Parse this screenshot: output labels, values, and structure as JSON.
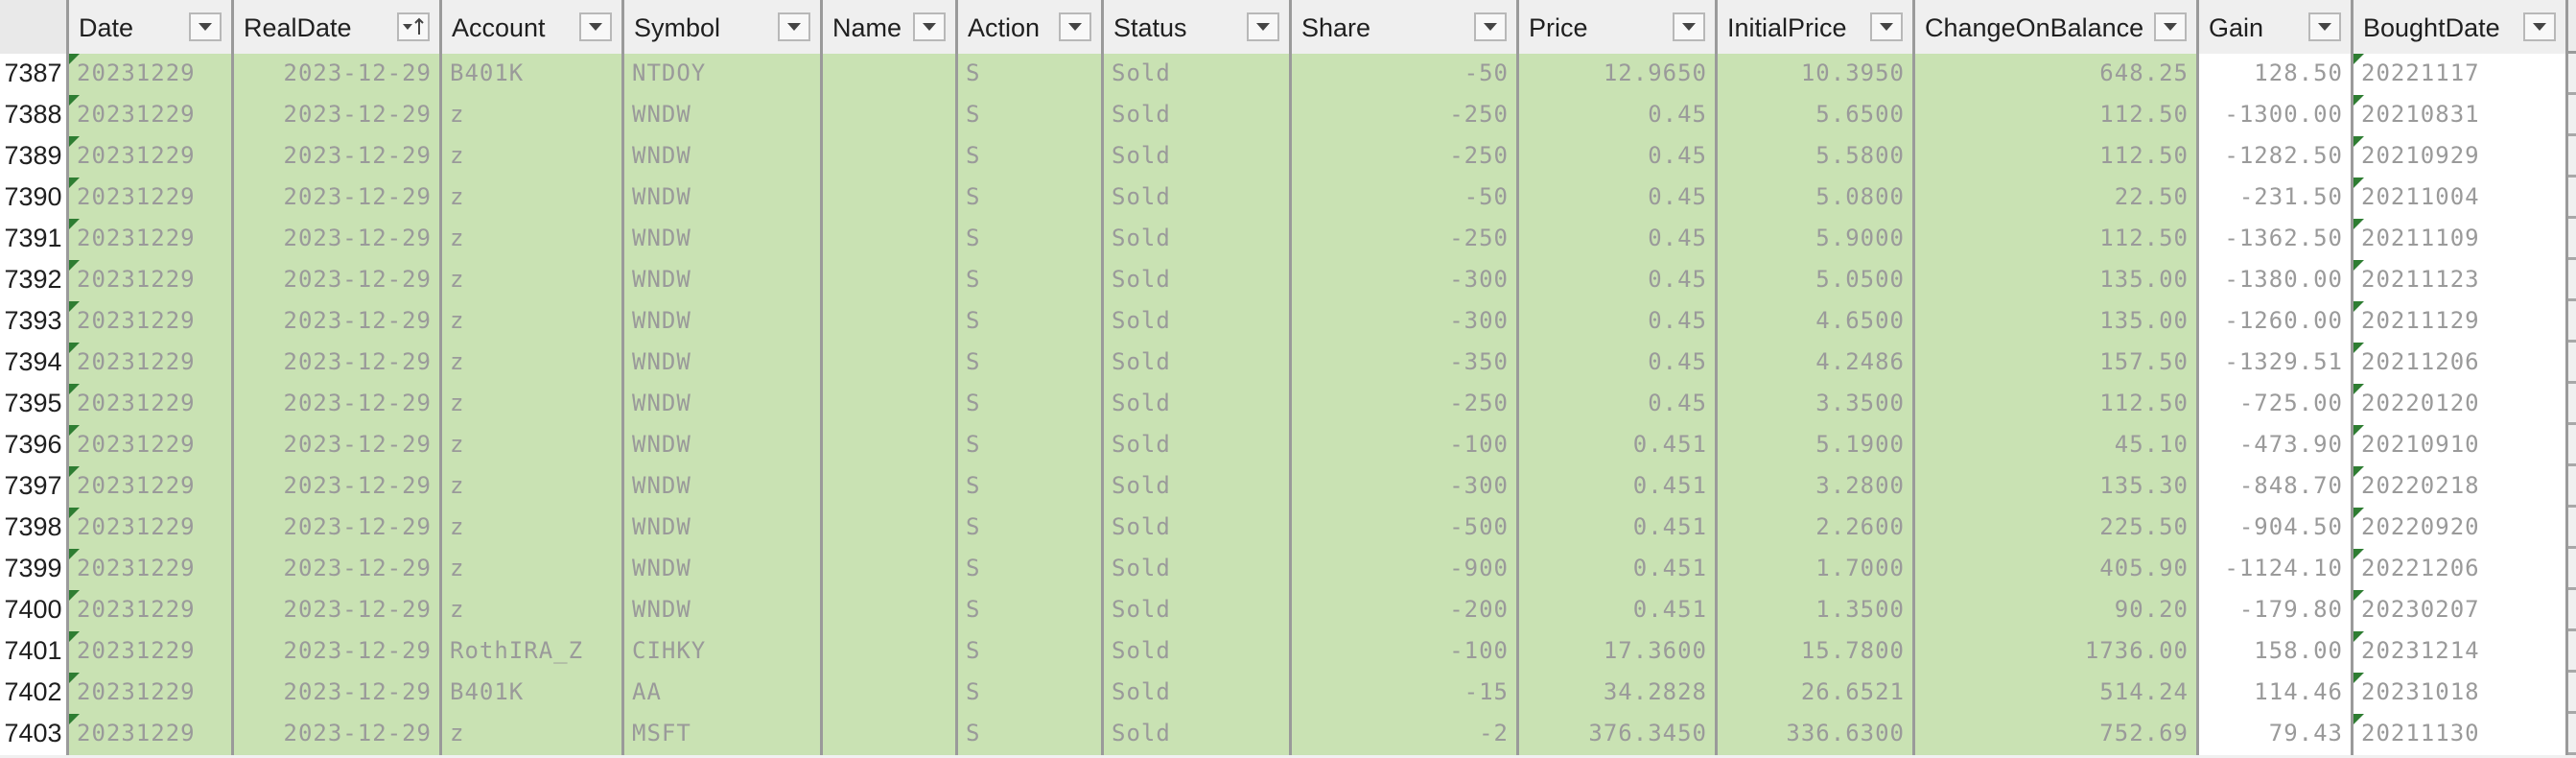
{
  "columns": [
    {
      "label": "Date",
      "align": "left",
      "fill": "green",
      "marker": true
    },
    {
      "label": "RealDate",
      "align": "right",
      "fill": "green",
      "marker": false,
      "sort_icon": "sort-ascending-filter-icon"
    },
    {
      "label": "Account",
      "align": "left",
      "fill": "green",
      "marker": false
    },
    {
      "label": "Symbol",
      "align": "left",
      "fill": "green",
      "marker": false
    },
    {
      "label": "Name",
      "align": "left",
      "fill": "green",
      "marker": false
    },
    {
      "label": "Action",
      "align": "left",
      "fill": "green",
      "marker": false
    },
    {
      "label": "Status",
      "align": "left",
      "fill": "green",
      "marker": false
    },
    {
      "label": "Share",
      "align": "right",
      "fill": "green",
      "marker": false
    },
    {
      "label": "Price",
      "align": "right",
      "fill": "green",
      "marker": false
    },
    {
      "label": "InitialPrice",
      "align": "right",
      "fill": "green",
      "marker": false
    },
    {
      "label": "ChangeOnBalance",
      "align": "right",
      "fill": "green",
      "marker": false
    },
    {
      "label": "Gain",
      "align": "right",
      "fill": "white",
      "marker": false
    },
    {
      "label": "BoughtDate",
      "align": "left",
      "fill": "white",
      "marker": true
    }
  ],
  "rows": [
    {
      "num": "7387",
      "cells": [
        "20231229",
        "2023-12-29",
        "B401K",
        "NTDOY",
        "",
        "S",
        "Sold",
        "-50",
        "12.9650",
        "10.3950",
        "648.25",
        "128.50",
        "20221117"
      ]
    },
    {
      "num": "7388",
      "cells": [
        "20231229",
        "2023-12-29",
        "z",
        "WNDW",
        "",
        "S",
        "Sold",
        "-250",
        "0.45",
        "5.6500",
        "112.50",
        "-1300.00",
        "20210831"
      ]
    },
    {
      "num": "7389",
      "cells": [
        "20231229",
        "2023-12-29",
        "z",
        "WNDW",
        "",
        "S",
        "Sold",
        "-250",
        "0.45",
        "5.5800",
        "112.50",
        "-1282.50",
        "20210929"
      ]
    },
    {
      "num": "7390",
      "cells": [
        "20231229",
        "2023-12-29",
        "z",
        "WNDW",
        "",
        "S",
        "Sold",
        "-50",
        "0.45",
        "5.0800",
        "22.50",
        "-231.50",
        "20211004"
      ]
    },
    {
      "num": "7391",
      "cells": [
        "20231229",
        "2023-12-29",
        "z",
        "WNDW",
        "",
        "S",
        "Sold",
        "-250",
        "0.45",
        "5.9000",
        "112.50",
        "-1362.50",
        "20211109"
      ]
    },
    {
      "num": "7392",
      "cells": [
        "20231229",
        "2023-12-29",
        "z",
        "WNDW",
        "",
        "S",
        "Sold",
        "-300",
        "0.45",
        "5.0500",
        "135.00",
        "-1380.00",
        "20211123"
      ]
    },
    {
      "num": "7393",
      "cells": [
        "20231229",
        "2023-12-29",
        "z",
        "WNDW",
        "",
        "S",
        "Sold",
        "-300",
        "0.45",
        "4.6500",
        "135.00",
        "-1260.00",
        "20211129"
      ]
    },
    {
      "num": "7394",
      "cells": [
        "20231229",
        "2023-12-29",
        "z",
        "WNDW",
        "",
        "S",
        "Sold",
        "-350",
        "0.45",
        "4.2486",
        "157.50",
        "-1329.51",
        "20211206"
      ]
    },
    {
      "num": "7395",
      "cells": [
        "20231229",
        "2023-12-29",
        "z",
        "WNDW",
        "",
        "S",
        "Sold",
        "-250",
        "0.45",
        "3.3500",
        "112.50",
        "-725.00",
        "20220120"
      ]
    },
    {
      "num": "7396",
      "cells": [
        "20231229",
        "2023-12-29",
        "z",
        "WNDW",
        "",
        "S",
        "Sold",
        "-100",
        "0.451",
        "5.1900",
        "45.10",
        "-473.90",
        "20210910"
      ]
    },
    {
      "num": "7397",
      "cells": [
        "20231229",
        "2023-12-29",
        "z",
        "WNDW",
        "",
        "S",
        "Sold",
        "-300",
        "0.451",
        "3.2800",
        "135.30",
        "-848.70",
        "20220218"
      ]
    },
    {
      "num": "7398",
      "cells": [
        "20231229",
        "2023-12-29",
        "z",
        "WNDW",
        "",
        "S",
        "Sold",
        "-500",
        "0.451",
        "2.2600",
        "225.50",
        "-904.50",
        "20220920"
      ]
    },
    {
      "num": "7399",
      "cells": [
        "20231229",
        "2023-12-29",
        "z",
        "WNDW",
        "",
        "S",
        "Sold",
        "-900",
        "0.451",
        "1.7000",
        "405.90",
        "-1124.10",
        "20221206"
      ]
    },
    {
      "num": "7400",
      "cells": [
        "20231229",
        "2023-12-29",
        "z",
        "WNDW",
        "",
        "S",
        "Sold",
        "-200",
        "0.451",
        "1.3500",
        "90.20",
        "-179.80",
        "20230207"
      ]
    },
    {
      "num": "7401",
      "cells": [
        "20231229",
        "2023-12-29",
        "RothIRA_Z",
        "CIHKY",
        "",
        "S",
        "Sold",
        "-100",
        "17.3600",
        "15.7800",
        "1736.00",
        "158.00",
        "20231214"
      ]
    },
    {
      "num": "7402",
      "cells": [
        "20231229",
        "2023-12-29",
        "B401K",
        "AA",
        "",
        "S",
        "Sold",
        "-15",
        "34.2828",
        "26.6521",
        "514.24",
        "114.46",
        "20231018"
      ]
    },
    {
      "num": "7403",
      "cells": [
        "20231229",
        "2023-12-29",
        "z",
        "MSFT",
        "",
        "S",
        "Sold",
        "-2",
        "376.3450",
        "336.6300",
        "752.69",
        "79.43",
        "20211130"
      ]
    }
  ],
  "colors": {
    "sold_fill": "#c9e2b3",
    "grid": "#9a9a9a",
    "error_marker": "#2e7d32",
    "cell_text": "#9a9a9a"
  }
}
